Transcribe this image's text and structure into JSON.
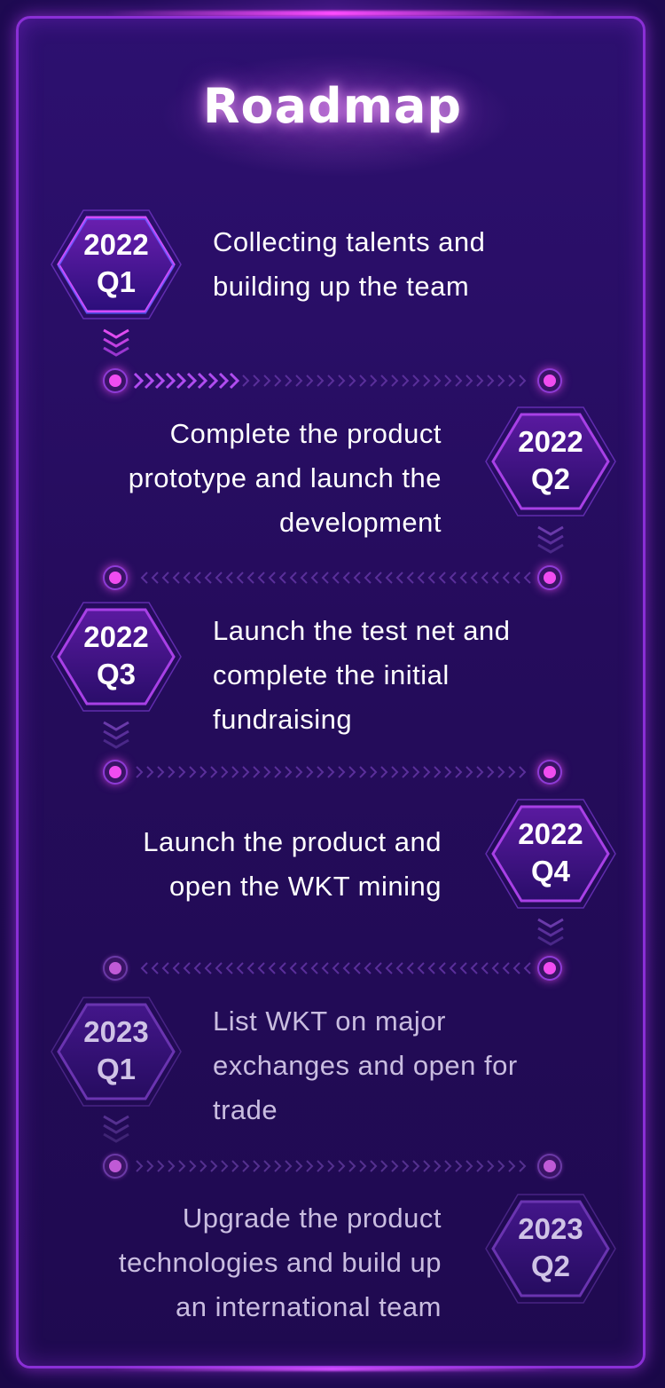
{
  "title": "Roadmap",
  "milestones": [
    {
      "year": "2022",
      "quarter": "Q1",
      "lines": [
        "Collecting talents and",
        "building up the team"
      ]
    },
    {
      "year": "2022",
      "quarter": "Q2",
      "lines": [
        "Complete the product",
        "prototype and launch the",
        "development"
      ]
    },
    {
      "year": "2022",
      "quarter": "Q3",
      "lines": [
        "Launch the test net and",
        "complete the initial",
        "fundraising"
      ]
    },
    {
      "year": "2022",
      "quarter": "Q4",
      "lines": [
        "Launch the product and",
        "open the WKT mining"
      ]
    },
    {
      "year": "2023",
      "quarter": "Q1",
      "lines": [
        "List WKT on major",
        "exchanges and open for",
        "trade"
      ]
    },
    {
      "year": "2023",
      "quarter": "Q2",
      "lines": [
        "Upgrade the product",
        "technologies and build up",
        "an international team"
      ]
    }
  ],
  "colors": {
    "accent": "#f04cf0",
    "frame": "#8a2fd6",
    "background": "#250c5c"
  }
}
